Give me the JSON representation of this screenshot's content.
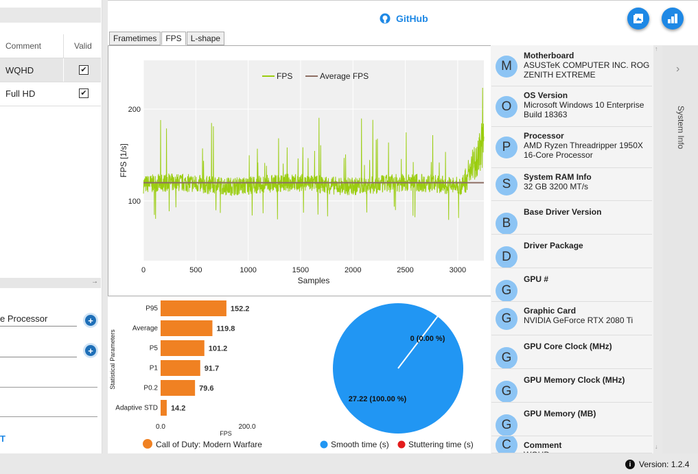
{
  "header": {
    "github_label": "GitHub"
  },
  "left_panel": {
    "columns": [
      "Comment",
      "Valid"
    ],
    "rows": [
      {
        "comment": "WQHD",
        "valid": "✔"
      },
      {
        "comment": "Full HD",
        "valid": "✔"
      }
    ],
    "processor_field": "e Processor",
    "bottom_link": "T"
  },
  "tabs": [
    "Frametimes",
    "FPS",
    "L-shape"
  ],
  "chart_data": [
    {
      "type": "line",
      "title": "",
      "xlabel": "Samples",
      "ylabel": "FPS [1/s]",
      "x_ticks": [
        "0",
        "500",
        "1000",
        "1500",
        "2000",
        "2500",
        "3000"
      ],
      "y_ticks": [
        "100",
        "200"
      ],
      "xlim": [
        0,
        3250
      ],
      "ylim": [
        35,
        253
      ],
      "legend": [
        "FPS",
        "Average FPS"
      ],
      "series": [
        {
          "name": "FPS",
          "color": "#9acd0f",
          "description": "noisy signal around 115-120 FPS, spikes to ~200, rising to ~240 near end"
        },
        {
          "name": "Average FPS",
          "color": "#8d6e63",
          "values": [
            119.8
          ]
        }
      ]
    },
    {
      "type": "bar",
      "orientation": "horizontal",
      "ylabel": "Statistical Parameters",
      "xlabel": "FPS",
      "x_ticks": [
        "0.0",
        "200.0"
      ],
      "xlim": [
        0,
        200
      ],
      "categories": [
        "P95",
        "Average",
        "P5",
        "P1",
        "P0.2",
        "Adaptive STD"
      ],
      "values": [
        152.2,
        119.8,
        101.2,
        91.7,
        79.6,
        14.2
      ],
      "labels": [
        "152.2",
        "119.8",
        "101.2",
        "91.7",
        "79.6",
        "14.2"
      ],
      "color": "#f08122",
      "legend": [
        "Call of Duty: Modern Warfare"
      ]
    },
    {
      "type": "pie",
      "categories": [
        "Smooth time (s)",
        "Stuttering time (s)"
      ],
      "values": [
        27.22,
        0
      ],
      "labels": [
        "27.22 (100.00 %)",
        "0 (0.00 %)"
      ],
      "colors": [
        "#2196f3",
        "#e31b1b"
      ]
    }
  ],
  "system_info": {
    "tab_label": "System Info",
    "items": [
      {
        "letter": "M",
        "title": "Motherboard",
        "value": "ASUSTeK COMPUTER INC. ROG ZENITH EXTREME"
      },
      {
        "letter": "O",
        "title": "OS Version",
        "value": "Microsoft Windows 10 Enterprise Build 18363"
      },
      {
        "letter": "P",
        "title": "Processor",
        "value": "AMD Ryzen Threadripper 1950X 16-Core Processor"
      },
      {
        "letter": "S",
        "title": "System RAM Info",
        "value": "32 GB 3200 MT/s"
      },
      {
        "letter": "B",
        "title": "Base Driver Version",
        "value": ""
      },
      {
        "letter": "D",
        "title": "Driver Package",
        "value": ""
      },
      {
        "letter": "G",
        "title": "GPU #",
        "value": ""
      },
      {
        "letter": "G",
        "title": "Graphic Card",
        "value": "NVIDIA GeForce RTX 2080 Ti"
      },
      {
        "letter": "G",
        "title": "GPU Core Clock (MHz)",
        "value": ""
      },
      {
        "letter": "G",
        "title": "GPU Memory Clock (MHz)",
        "value": ""
      },
      {
        "letter": "G",
        "title": "GPU Memory (MB)",
        "value": ""
      },
      {
        "letter": "C",
        "title": "Comment",
        "value": "WQHD"
      }
    ]
  },
  "footer": {
    "version": "Version: 1.2.4"
  }
}
